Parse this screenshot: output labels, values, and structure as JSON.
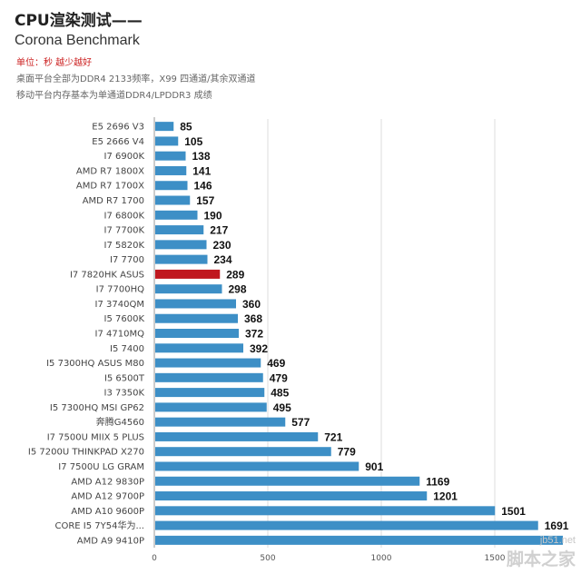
{
  "header": {
    "title": "CPU渲染测试——",
    "subtitle": "Corona Benchmark",
    "unit": "单位：秒 越少越好",
    "note1": "桌面平台全部为DDR4 2133频率，X99 四通道/其余双通道",
    "note2": "移动平台内存基本为单通道DDR4/LPDDR3 成绩"
  },
  "colors": {
    "bar": "#3d8fc6",
    "highlight": "#c0181f",
    "grid": "#dddddd"
  },
  "chart_data": {
    "type": "bar",
    "orientation": "horizontal",
    "title": "CPU渲染测试——",
    "subtitle": "Corona Benchmark",
    "categories": [
      "E5 2696 V3",
      "E5 2666 V4",
      "I7 6900K",
      "AMD R7 1800X",
      "AMD R7 1700X",
      "AMD R7 1700",
      "I7 6800K",
      "I7 7700K",
      "I7 5820K",
      "I7 7700",
      "I7 7820HK ASUS",
      "I7 7700HQ",
      "I7 3740QM",
      "I5 7600K",
      "I7 4710MQ",
      "I5 7400",
      "I5 7300HQ ASUS M80",
      "I5 6500T",
      "I3 7350K",
      "I5 7300HQ MSI GP62",
      "奔腾G4560",
      "I7 7500U MIIX 5 PLUS",
      "I5 7200U THINKPAD X270",
      "I7 7500U LG GRAM",
      "AMD A12 9830P",
      "AMD A12 9700P",
      "AMD A10 9600P",
      "CORE I5 7Y54华为...",
      "AMD A9 9410P"
    ],
    "values": [
      85,
      105,
      138,
      141,
      146,
      157,
      190,
      217,
      230,
      234,
      289,
      298,
      360,
      368,
      372,
      392,
      469,
      479,
      485,
      495,
      577,
      721,
      779,
      901,
      1169,
      1201,
      1501,
      1691,
      1800
    ],
    "value_labels": [
      "85",
      "105",
      "138",
      "141",
      "146",
      "157",
      "190",
      "217",
      "230",
      "234",
      "289",
      "298",
      "360",
      "368",
      "372",
      "392",
      "469",
      "479",
      "485",
      "495",
      "577",
      "721",
      "779",
      "901",
      "1169",
      "1201",
      "1501",
      "1691",
      ""
    ],
    "highlight_index": 10,
    "xlim": [
      0,
      1800
    ],
    "xticks": [
      0,
      500,
      1000,
      1500
    ],
    "grid": true
  },
  "watermark": {
    "url": "jb51.net",
    "name": "脚本之家"
  }
}
